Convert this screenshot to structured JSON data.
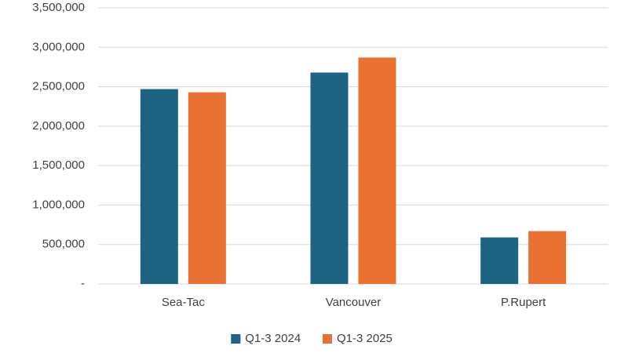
{
  "chart_data": {
    "type": "bar",
    "categories": [
      "Sea-Tac",
      "Vancouver",
      "P.Rupert"
    ],
    "series": [
      {
        "name": "Q1-3 2024",
        "color": "#1f6382",
        "values": [
          2470000,
          2680000,
          590000
        ]
      },
      {
        "name": "Q1-3 2025",
        "color": "#e97132",
        "values": [
          2430000,
          2870000,
          670000
        ]
      }
    ],
    "ylim": [
      0,
      3500000
    ],
    "yticks": [
      {
        "value": 0,
        "label": "-"
      },
      {
        "value": 500000,
        "label": "500,000"
      },
      {
        "value": 1000000,
        "label": "1,000,000"
      },
      {
        "value": 1500000,
        "label": "1,500,000"
      },
      {
        "value": 2000000,
        "label": "2,000,000"
      },
      {
        "value": 2500000,
        "label": "2,500,000"
      },
      {
        "value": 3000000,
        "label": "3,000,000"
      },
      {
        "value": 3500000,
        "label": "3,500,000"
      }
    ],
    "grid": true,
    "legend": "bottom"
  }
}
